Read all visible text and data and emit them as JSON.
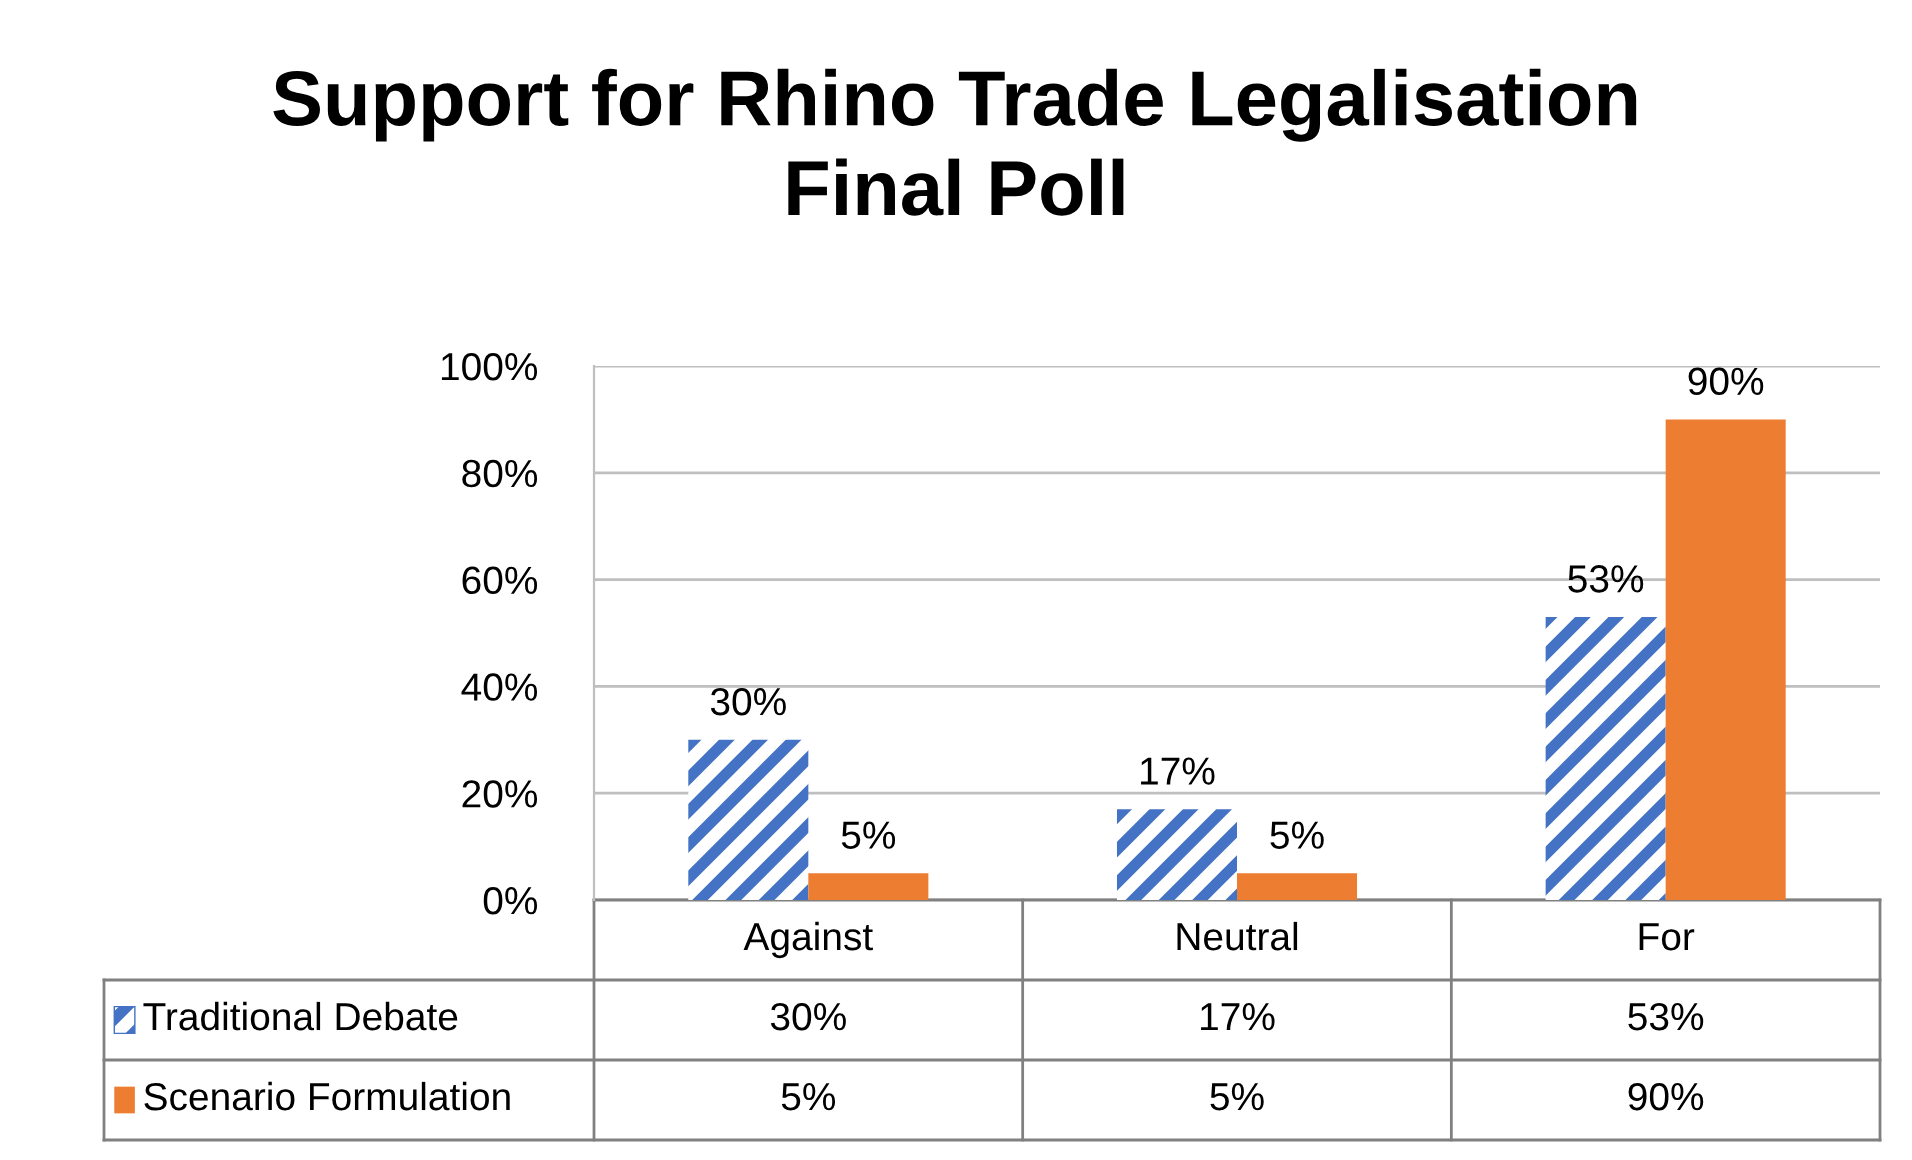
{
  "chart_data": {
    "type": "bar",
    "title": "Support for Rhino Trade Legalisation\nFinal Poll",
    "categories": [
      "Against",
      "Neutral",
      "For"
    ],
    "series": [
      {
        "name": "Traditional Debate",
        "color": "#4472c4",
        "values": [
          30,
          17,
          53
        ],
        "value_labels": [
          "30%",
          "17%",
          "53%"
        ]
      },
      {
        "name": "Scenario Formulation",
        "color": "#ed7d31",
        "values": [
          5,
          5,
          90
        ],
        "value_labels": [
          "5%",
          "5%",
          "90%"
        ]
      }
    ],
    "ylim": [
      0,
      100
    ],
    "yticks": [
      {
        "value": 0,
        "label": "0%"
      },
      {
        "value": 20,
        "label": "20%"
      },
      {
        "value": 40,
        "label": "40%"
      },
      {
        "value": 60,
        "label": "60%"
      },
      {
        "value": 80,
        "label": "80%"
      },
      {
        "value": 100,
        "label": "100%"
      }
    ],
    "grid": "y",
    "legend": "bottom"
  }
}
